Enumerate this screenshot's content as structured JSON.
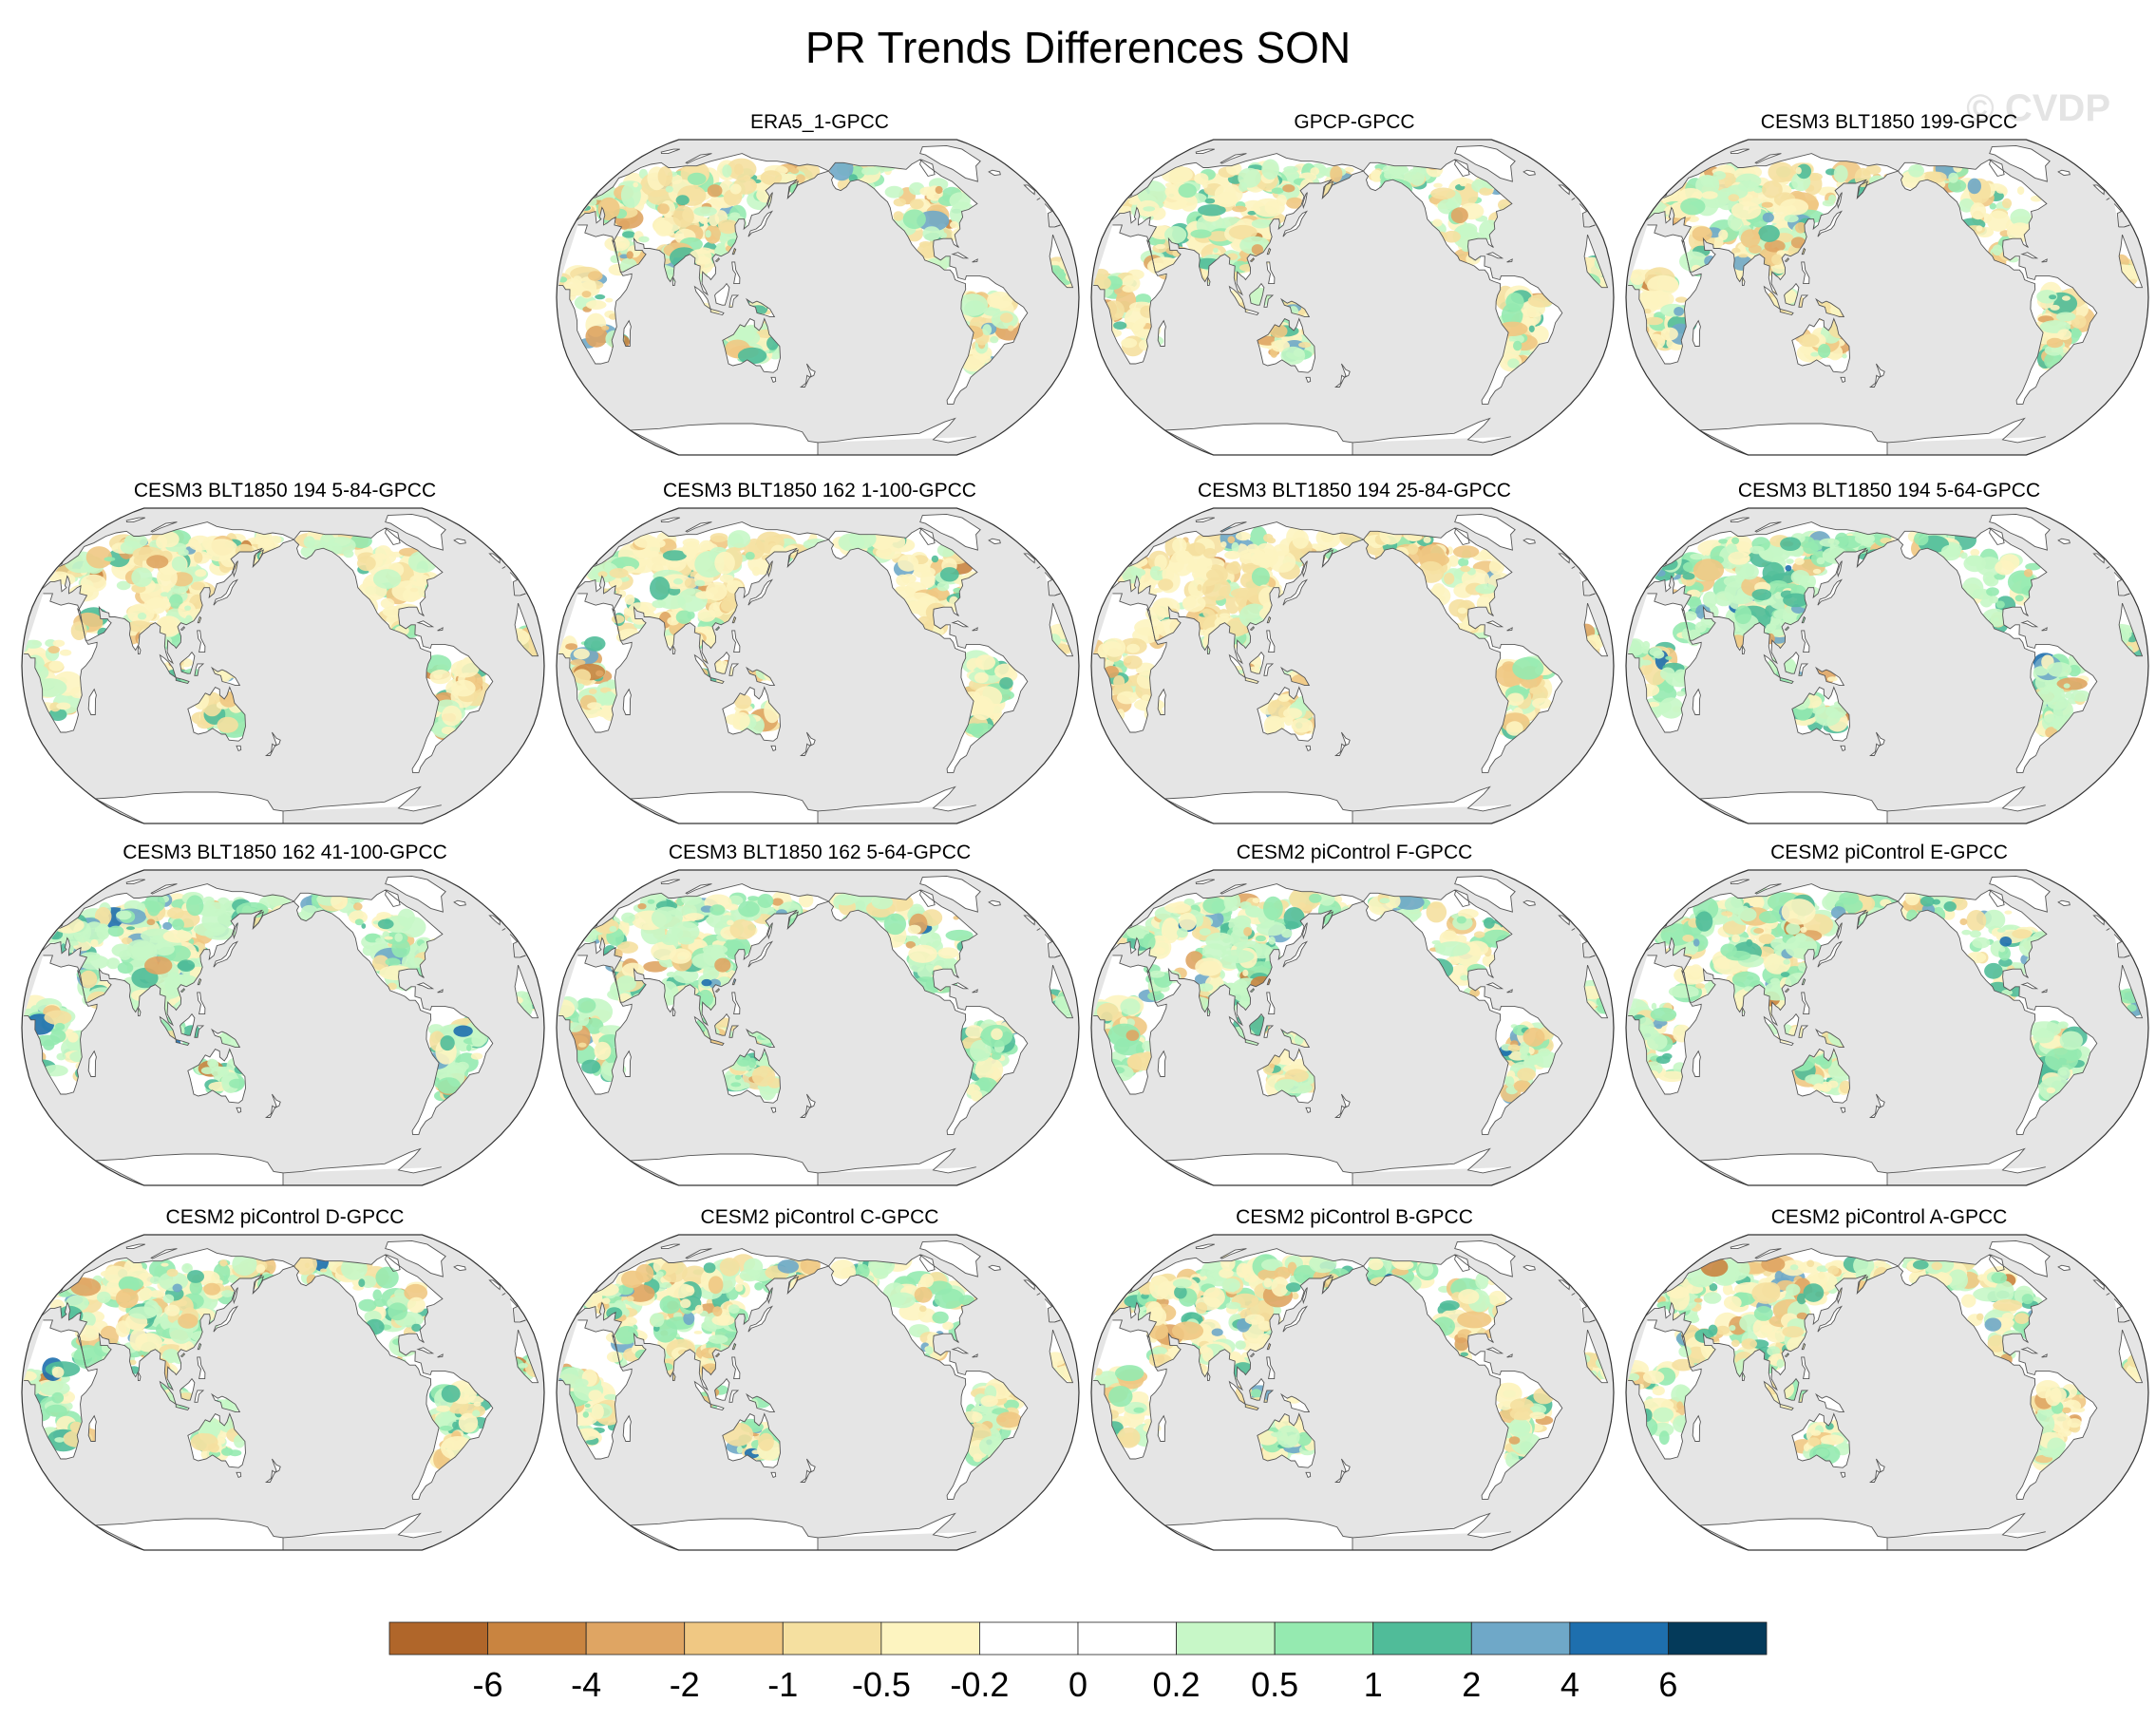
{
  "title": "PR Trends Differences SON",
  "watermark": "© CVDP",
  "map_data": {
    "projection": "robinson",
    "central_longitude": 180,
    "ocean_color": "#e5e5e5",
    "coastline_color": "#555555",
    "panels": [
      {
        "title": "ERA5_1-GPCC"
      },
      {
        "title": "GPCP-GPCC"
      },
      {
        "title": "CESM3 BLT1850 199-GPCC"
      },
      {
        "title": "CESM3 BLT1850 194 5-84-GPCC"
      },
      {
        "title": "CESM3 BLT1850 162 1-100-GPCC"
      },
      {
        "title": "CESM3 BLT1850 194 25-84-GPCC"
      },
      {
        "title": "CESM3 BLT1850 194 5-64-GPCC"
      },
      {
        "title": "CESM3 BLT1850 162 41-100-GPCC"
      },
      {
        "title": "CESM3 BLT1850 162 5-64-GPCC"
      },
      {
        "title": "CESM2 piControl F-GPCC"
      },
      {
        "title": "CESM2 piControl E-GPCC"
      },
      {
        "title": "CESM2 piControl D-GPCC"
      },
      {
        "title": "CESM2 piControl C-GPCC"
      },
      {
        "title": "CESM2 piControl B-GPCC"
      },
      {
        "title": "CESM2 piControl A-GPCC"
      }
    ],
    "colorbar": {
      "levels": [
        "-6",
        "-4",
        "-2",
        "-1",
        "-0.5",
        "-0.2",
        "0",
        "0.2",
        "0.5",
        "1",
        "2",
        "4",
        "6"
      ],
      "colors": [
        "#b0662a",
        "#c98440",
        "#dfa563",
        "#f0c883",
        "#f5e0a0",
        "#fdf4c0",
        "#ffffff",
        "#ffffff",
        "#c7f7c7",
        "#95eab0",
        "#50bc99",
        "#6fa8c8",
        "#1e6fae",
        "#043a5a"
      ]
    }
  }
}
